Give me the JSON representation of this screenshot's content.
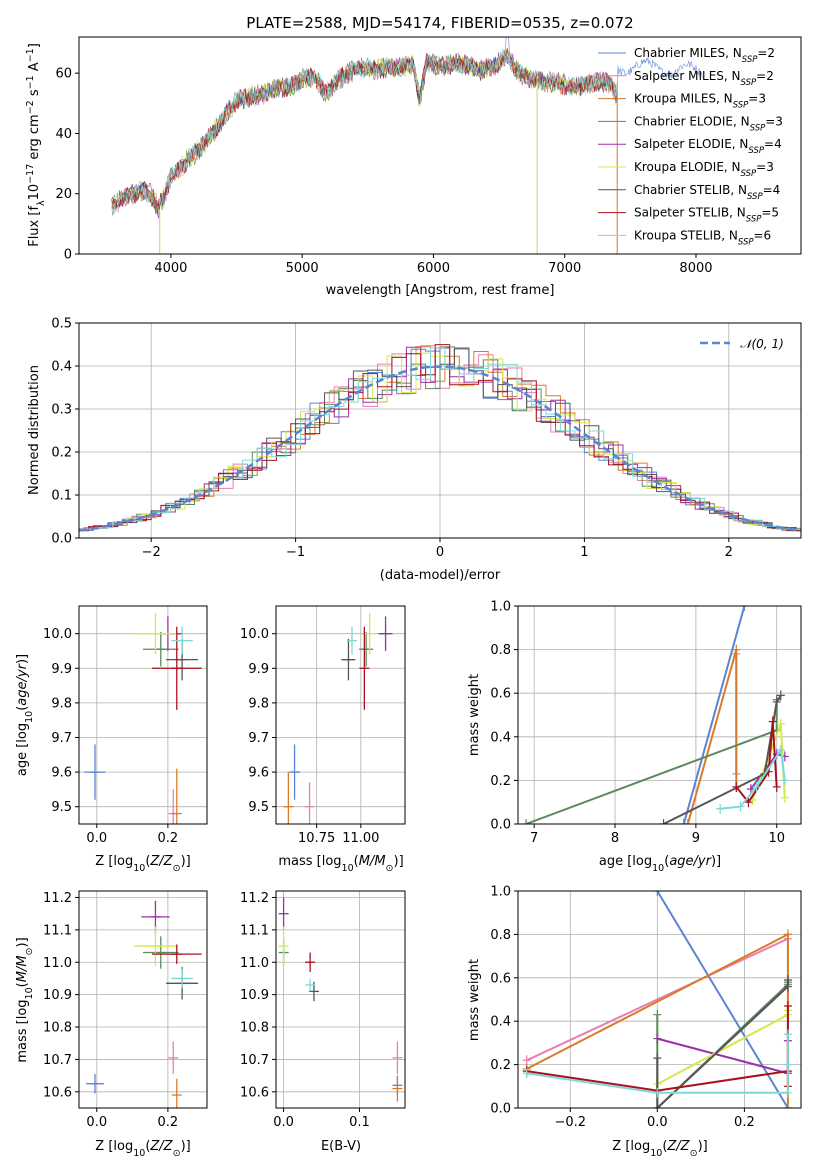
{
  "figure_title": "PLATE=2588, MJD=54174, FIBERID=0535, z=0.072",
  "legend_entries": [
    {
      "name": "Chabrier MILES, N$_{SSP}$=2",
      "prefix": "Chabrier MILES, N",
      "sub": "SSP",
      "suffix": "=2",
      "color": "#5b84d6"
    },
    {
      "name": "Salpeter MILES, N$_{SSP}$=2",
      "prefix": "Salpeter MILES, N",
      "sub": "SSP",
      "suffix": "=2",
      "color": "#e67fb3"
    },
    {
      "name": "Kroupa MILES, N$_{SSP}$=3",
      "prefix": "Kroupa MILES, N",
      "sub": "SSP",
      "suffix": "=3",
      "color": "#d97c29"
    },
    {
      "name": "Chabrier ELODIE, N$_{SSP}$=3",
      "prefix": "Chabrier ELODIE, N",
      "sub": "SSP",
      "suffix": "=3",
      "color": "#5a8a5e"
    },
    {
      "name": "Salpeter ELODIE, N$_{SSP}$=4",
      "prefix": "Salpeter ELODIE, N",
      "sub": "SSP",
      "suffix": "=4",
      "color": "#9b31a7"
    },
    {
      "name": "Kroupa ELODIE, N$_{SSP}$=3",
      "prefix": "Kroupa ELODIE, N",
      "sub": "SSP",
      "suffix": "=3",
      "color": "#d4e84a"
    },
    {
      "name": "Chabrier STELIB, N$_{SSP}$=4",
      "prefix": "Chabrier STELIB, N",
      "sub": "SSP",
      "suffix": "=4",
      "color": "#555555"
    },
    {
      "name": "Salpeter STELIB, N$_{SSP}$=5",
      "prefix": "Salpeter STELIB, N",
      "sub": "SSP",
      "suffix": "=5",
      "color": "#a8121a"
    },
    {
      "name": "Kroupa STELIB, N$_{SSP}$=6",
      "prefix": "Kroupa STELIB, N",
      "sub": "SSP",
      "suffix": "=6",
      "color": "#7fd8d8"
    }
  ],
  "chart_data": [
    {
      "id": "spectrum",
      "type": "line",
      "xlabel": "wavelength [Angstrom, rest frame]",
      "ylabel": "Flux [f$_\\lambda$10$^{-17}$ erg cm$^{-2}$ s$^{-1}$ A$^{-1}$]",
      "ylabel_parts": [
        "Flux [f",
        "λ",
        "10",
        "−17",
        " erg cm",
        "−2",
        " s",
        "−1",
        " A",
        "−1",
        "]"
      ],
      "xlim": [
        3300,
        8800
      ],
      "ylim": [
        0,
        72
      ],
      "xticks": [
        4000,
        5000,
        6000,
        7000,
        8000
      ],
      "yticks": [
        0,
        20,
        40,
        60
      ],
      "grid": false,
      "legend": "upper right",
      "x": [
        3550,
        3620,
        3700,
        3780,
        3850,
        3900,
        3950,
        4000,
        4050,
        4100,
        4200,
        4300,
        4400,
        4500,
        4600,
        4700,
        4800,
        4900,
        5000,
        5100,
        5175,
        5250,
        5350,
        5450,
        5550,
        5650,
        5750,
        5850,
        5893,
        5950,
        6050,
        6150,
        6250,
        6350,
        6450,
        6563,
        6650,
        6750,
        6850,
        6950,
        7050,
        7150,
        7250,
        7350,
        7400
      ],
      "y": [
        16,
        18,
        20,
        21,
        20,
        15,
        19,
        26,
        27,
        30,
        34,
        39,
        45,
        51,
        52,
        53,
        55,
        55,
        58,
        59,
        53,
        57,
        60,
        62,
        61,
        62,
        62,
        63,
        51,
        64,
        62,
        63,
        63,
        61,
        62,
        66,
        60,
        58,
        57,
        57,
        55,
        56,
        57,
        57,
        52
      ],
      "cutoffs": [
        3915,
        6790,
        7400
      ]
    },
    {
      "id": "residuals",
      "type": "histogram",
      "xlabel": "(data-model)/error",
      "ylabel": "Normed distribution",
      "xlim": [
        -2.5,
        2.5
      ],
      "ylim": [
        0,
        0.5
      ],
      "xticks": [
        -2,
        -1,
        0,
        1,
        2
      ],
      "xtick_labels": [
        "−2",
        "−1",
        "0",
        "1",
        "2"
      ],
      "yticks": [
        0,
        0.1,
        0.2,
        0.3,
        0.4,
        0.5
      ],
      "grid": true,
      "legend": "upper right",
      "reference_label": "$\\mathcal{N}(0,1)$",
      "reference_label_text": "𝒩(0, 1)",
      "reference_color": "#5b84d6"
    },
    {
      "id": "age_vs_Z",
      "type": "scatter",
      "xlabel": "Z [log$_{10}$($Z/Z_\\odot$)]",
      "ylabel": "age  [log$_{10}$($age/yr$)]",
      "xlim": [
        -0.05,
        0.31
      ],
      "ylim": [
        9.45,
        10.08
      ],
      "xticks": [
        0.0,
        0.2
      ],
      "yticks": [
        9.5,
        9.6,
        9.7,
        9.8,
        9.9,
        10.0
      ],
      "grid": true,
      "points": [
        {
          "x": -0.005,
          "y": 9.6,
          "xerr": 0.03,
          "yerr": 0.08,
          "color": "#5b84d6"
        },
        {
          "x": 0.215,
          "y": 9.48,
          "xerr": 0.0,
          "yerr": 0.07,
          "color": "#e67fb3"
        },
        {
          "x": 0.225,
          "y": 9.48,
          "xerr": 0.0,
          "yerr": 0.13,
          "color": "#d97c29"
        },
        {
          "x": 0.18,
          "y": 9.955,
          "xerr": 0.05,
          "yerr": 0.05,
          "color": "#5a8a5e"
        },
        {
          "x": 0.2,
          "y": 10.0,
          "xerr": 0.04,
          "yerr": 0.05,
          "color": "#9b31a7"
        },
        {
          "x": 0.165,
          "y": 10.0,
          "xerr": 0.06,
          "yerr": 0.06,
          "color": "#d4e84a"
        },
        {
          "x": 0.24,
          "y": 9.925,
          "xerr": 0.045,
          "yerr": 0.06,
          "color": "#555555"
        },
        {
          "x": 0.225,
          "y": 9.9,
          "xerr": 0.07,
          "yerr": 0.12,
          "color": "#a8121a"
        },
        {
          "x": 0.24,
          "y": 9.98,
          "xerr": 0.03,
          "yerr": 0.04,
          "color": "#7fd8d8"
        }
      ]
    },
    {
      "id": "age_vs_mass",
      "type": "scatter",
      "xlabel": "mass [log$_{10}$($M/M_\\odot$)]",
      "ylabel": "",
      "xlim": [
        10.52,
        11.25
      ],
      "ylim": [
        9.45,
        10.08
      ],
      "xticks": [
        10.75,
        11.0
      ],
      "xtick_labels": [
        "10.75",
        "11.00"
      ],
      "yticks": [
        9.5,
        9.6,
        9.7,
        9.8,
        9.9,
        10.0
      ],
      "grid": true,
      "points": [
        {
          "x": 10.625,
          "y": 9.6,
          "xerr": 0.03,
          "yerr": 0.08,
          "color": "#5b84d6"
        },
        {
          "x": 10.71,
          "y": 9.5,
          "xerr": 0.0,
          "yerr": 0.07,
          "color": "#e67fb3"
        },
        {
          "x": 10.59,
          "y": 9.5,
          "xerr": 0.0,
          "yerr": 0.1,
          "color": "#d97c29"
        },
        {
          "x": 11.03,
          "y": 9.955,
          "xerr": 0.04,
          "yerr": 0.05,
          "color": "#5a8a5e"
        },
        {
          "x": 11.14,
          "y": 10.0,
          "xerr": 0.04,
          "yerr": 0.05,
          "color": "#9b31a7"
        },
        {
          "x": 11.05,
          "y": 10.0,
          "xerr": 0.0,
          "yerr": 0.06,
          "color": "#d4e84a"
        },
        {
          "x": 10.93,
          "y": 9.925,
          "xerr": 0.04,
          "yerr": 0.06,
          "color": "#555555"
        },
        {
          "x": 11.02,
          "y": 9.9,
          "xerr": 0.0,
          "yerr": 0.12,
          "color": "#a8121a"
        },
        {
          "x": 10.95,
          "y": 9.98,
          "xerr": 0.0,
          "yerr": 0.04,
          "color": "#7fd8d8"
        }
      ]
    },
    {
      "id": "massweight_vs_age",
      "type": "line",
      "xlabel": "age  [log$_{10}$($age/yr$)]",
      "ylabel": "mass weight",
      "xlim": [
        6.8,
        10.3
      ],
      "ylim": [
        0,
        1.0
      ],
      "xticks": [
        7,
        8,
        9,
        10
      ],
      "yticks": [
        0,
        0.2,
        0.4,
        0.6,
        0.8,
        1.0
      ],
      "grid": true,
      "series": [
        {
          "color": "#5b84d6",
          "x": [
            8.85,
            9.6
          ],
          "y": [
            0,
            1.0
          ]
        },
        {
          "color": "#e67fb3",
          "x": [
            9.5,
            9.5
          ],
          "y": [
            0.23,
            0.78
          ]
        },
        {
          "color": "#d97c29",
          "x": [
            8.9,
            9.5,
            9.5
          ],
          "y": [
            0,
            0.8,
            0.17
          ]
        },
        {
          "color": "#5a8a5e",
          "x": [
            6.9,
            10.0,
            10.0
          ],
          "y": [
            0,
            0.43,
            0.57
          ]
        },
        {
          "color": "#9b31a7",
          "x": [
            9.68,
            10.0,
            10.1
          ],
          "y": [
            0.16,
            0.32,
            0.31
          ]
        },
        {
          "color": "#d4e84a",
          "x": [
            9.7,
            10.05,
            10.1
          ],
          "y": [
            0.11,
            0.46,
            0.12
          ]
        },
        {
          "color": "#555555",
          "x": [
            8.6,
            9.85,
            10.0,
            10.05
          ],
          "y": [
            0,
            0.23,
            0.56,
            0.59
          ]
        },
        {
          "color": "#a8121a",
          "x": [
            9.5,
            9.65,
            9.9,
            9.95,
            10.0
          ],
          "y": [
            0.17,
            0.1,
            0.24,
            0.47,
            0.17
          ]
        },
        {
          "color": "#7fd8d8",
          "x": [
            9.3,
            9.55,
            9.75,
            10.05,
            10.1
          ],
          "y": [
            0.07,
            0.08,
            0.17,
            0.34,
            0.2
          ]
        }
      ]
    },
    {
      "id": "mass_vs_Z",
      "type": "scatter",
      "xlabel": "Z [log$_{10}$($Z/Z_\\odot$)]",
      "ylabel": "mass [log$_{10}$($M/M_\\odot$)]",
      "xlim": [
        -0.05,
        0.31
      ],
      "ylim": [
        10.55,
        11.22
      ],
      "xticks": [
        0.0,
        0.2
      ],
      "yticks": [
        10.6,
        10.7,
        10.8,
        10.9,
        11.0,
        11.1,
        11.2
      ],
      "grid": true,
      "points": [
        {
          "x": -0.005,
          "y": 10.625,
          "xerr": 0.025,
          "yerr": 0.03,
          "color": "#5b84d6"
        },
        {
          "x": 0.215,
          "y": 10.705,
          "xerr": 0.0,
          "yerr": 0.05,
          "color": "#e67fb3"
        },
        {
          "x": 0.225,
          "y": 10.59,
          "xerr": 0.0,
          "yerr": 0.05,
          "color": "#d97c29"
        },
        {
          "x": 0.18,
          "y": 11.03,
          "xerr": 0.05,
          "yerr": 0.05,
          "color": "#5a8a5e"
        },
        {
          "x": 0.165,
          "y": 11.14,
          "xerr": 0.04,
          "yerr": 0.05,
          "color": "#9b31a7"
        },
        {
          "x": 0.165,
          "y": 11.05,
          "xerr": 0.06,
          "yerr": 0.06,
          "color": "#d4e84a"
        },
        {
          "x": 0.24,
          "y": 10.935,
          "xerr": 0.045,
          "yerr": 0.05,
          "color": "#555555"
        },
        {
          "x": 0.225,
          "y": 11.025,
          "xerr": 0.07,
          "yerr": 0.03,
          "color": "#a8121a"
        },
        {
          "x": 0.24,
          "y": 10.95,
          "xerr": 0.03,
          "yerr": 0.03,
          "color": "#7fd8d8"
        }
      ]
    },
    {
      "id": "mass_vs_ebv",
      "type": "scatter",
      "xlabel": "E(B-V)",
      "ylabel": "",
      "xlim": [
        -0.01,
        0.16
      ],
      "ylim": [
        10.55,
        11.22
      ],
      "xticks": [
        0.0,
        0.1
      ],
      "yticks": [
        10.6,
        10.7,
        10.8,
        10.9,
        11.0,
        11.1,
        11.2
      ],
      "grid": true,
      "points": [
        {
          "x": 0.15,
          "y": 10.62,
          "xerr": 0.0,
          "yerr": 0.03,
          "color": "#5b84d6"
        },
        {
          "x": 0.15,
          "y": 10.705,
          "xerr": 0.0,
          "yerr": 0.05,
          "color": "#e67fb3"
        },
        {
          "x": 0.15,
          "y": 10.61,
          "xerr": 0.0,
          "yerr": 0.04,
          "color": "#d97c29"
        },
        {
          "x": 0.0,
          "y": 11.03,
          "xerr": 0.0,
          "yerr": 0.04,
          "color": "#5a8a5e"
        },
        {
          "x": 0.0,
          "y": 11.15,
          "xerr": 0.0,
          "yerr": 0.05,
          "color": "#9b31a7"
        },
        {
          "x": 0.0,
          "y": 11.05,
          "xerr": 0.0,
          "yerr": 0.06,
          "color": "#d4e84a"
        },
        {
          "x": 0.04,
          "y": 10.91,
          "xerr": 0.0,
          "yerr": 0.03,
          "color": "#555555"
        },
        {
          "x": 0.035,
          "y": 11.0,
          "xerr": 0.0,
          "yerr": 0.03,
          "color": "#a8121a"
        },
        {
          "x": 0.035,
          "y": 10.93,
          "xerr": 0.0,
          "yerr": 0.02,
          "color": "#7fd8d8"
        }
      ]
    },
    {
      "id": "massweight_vs_Z",
      "type": "line",
      "xlabel": "Z [log$_{10}$($Z/Z_\\odot$)]",
      "ylabel": "mass weight",
      "xlim": [
        -0.32,
        0.33
      ],
      "ylim": [
        0,
        1.0
      ],
      "xticks": [
        -0.2,
        0.0,
        0.2
      ],
      "xtick_labels": [
        "−0.2",
        "0.0",
        "0.2"
      ],
      "yticks": [
        0,
        0.2,
        0.4,
        0.6,
        0.8,
        1.0
      ],
      "grid": true,
      "series": [
        {
          "color": "#5b84d6",
          "x": [
            0.0,
            0.3
          ],
          "y": [
            1.0,
            0
          ]
        },
        {
          "color": "#e67fb3",
          "x": [
            -0.3,
            0.3
          ],
          "y": [
            0.22,
            0.78
          ]
        },
        {
          "color": "#d97c29",
          "x": [
            -0.3,
            0.3,
            0.3
          ],
          "y": [
            0.18,
            0.8,
            0
          ]
        },
        {
          "color": "#5a8a5e",
          "x": [
            0.0,
            0.0,
            0.3,
            0.3
          ],
          "y": [
            0.43,
            0,
            0.57,
            0.58
          ]
        },
        {
          "color": "#9b31a7",
          "x": [
            0.0,
            0.3,
            0.3
          ],
          "y": [
            0.32,
            0.16,
            0.31
          ]
        },
        {
          "color": "#d4e84a",
          "x": [
            0.0,
            0.3,
            0.3
          ],
          "y": [
            0.11,
            0.43,
            0.45
          ]
        },
        {
          "color": "#555555",
          "x": [
            0.0,
            0.0,
            0.3,
            0.3
          ],
          "y": [
            0.23,
            0,
            0.56,
            0.59
          ]
        },
        {
          "color": "#a8121a",
          "x": [
            -0.3,
            0.0,
            0.3,
            0.3,
            0.3
          ],
          "y": [
            0.17,
            0.08,
            0.17,
            0.47,
            0.1
          ]
        },
        {
          "color": "#7fd8d8",
          "x": [
            -0.3,
            0.0,
            0.3,
            0.3,
            0.3
          ],
          "y": [
            0.16,
            0.07,
            0.07,
            0.34,
            0.2
          ]
        }
      ]
    }
  ]
}
